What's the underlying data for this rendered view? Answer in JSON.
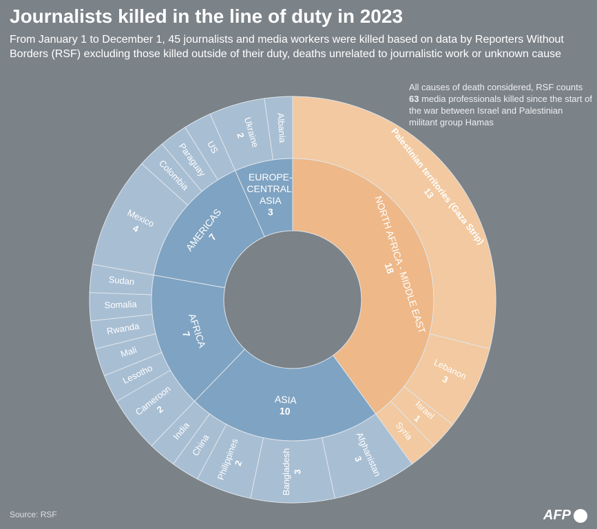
{
  "chart_data": {
    "type": "sunburst",
    "title": "Journalists killed in the line of duty in 2023",
    "subtitle": "From January 1 to December 1, 45 journalists and media workers were killed based on data by Reporters Without Borders (RSF) excluding those killed outside of their duty, deaths unrelated to journalistic work or unknown cause",
    "annotation": {
      "before": "All causes of death considered, RSF counts ",
      "highlight": "63",
      "after": " media professionals killed since the start of the war between Israel and Palestinian militant group Hamas"
    },
    "source": "Source: RSF",
    "logo": "AFP",
    "groups": [
      {
        "name": "NORTH AFRICA - MIDDLE EAST",
        "value": 18,
        "color": "#eeb888",
        "child_color": "#f2c9a0",
        "children": [
          {
            "name": "Palestinian territories (Gaza Strip)",
            "value": 13,
            "show_value": true
          },
          {
            "name": "Lebanon",
            "value": 3,
            "show_value": true
          },
          {
            "name": "Israel",
            "value": 1,
            "show_value": true
          },
          {
            "name": "Syria",
            "value": 1,
            "show_value": false
          }
        ]
      },
      {
        "name": "ASIA",
        "value": 10,
        "color": "#7fa3c2",
        "child_color": "#a8bed3",
        "children": [
          {
            "name": "Afghanistan",
            "value": 3,
            "show_value": true
          },
          {
            "name": "Bangladesh",
            "value": 3,
            "show_value": true
          },
          {
            "name": "Philippines",
            "value": 2,
            "show_value": true
          },
          {
            "name": "China",
            "value": 1,
            "show_value": false
          },
          {
            "name": "India",
            "value": 1,
            "show_value": false
          }
        ]
      },
      {
        "name": "AFRICA",
        "value": 7,
        "color": "#7fa3c2",
        "child_color": "#a8bed3",
        "children": [
          {
            "name": "Cameroon",
            "value": 2,
            "show_value": true
          },
          {
            "name": "Lesotho",
            "value": 1,
            "show_value": false
          },
          {
            "name": "Mali",
            "value": 1,
            "show_value": false
          },
          {
            "name": "Rwanda",
            "value": 1,
            "show_value": false
          },
          {
            "name": "Somalia",
            "value": 1,
            "show_value": false
          },
          {
            "name": "Sudan",
            "value": 1,
            "show_value": false
          }
        ]
      },
      {
        "name": "AMERICAS",
        "value": 7,
        "color": "#7fa3c2",
        "child_color": "#a8bed3",
        "children": [
          {
            "name": "Mexico",
            "value": 4,
            "show_value": true
          },
          {
            "name": "Colombia",
            "value": 1,
            "show_value": false
          },
          {
            "name": "Paraguay",
            "value": 1,
            "show_value": false
          },
          {
            "name": "US",
            "value": 1,
            "show_value": false
          }
        ]
      },
      {
        "name": "EUROPE-CENTRAL ASIA",
        "value": 3,
        "color": "#7fa3c2",
        "child_color": "#a8bed3",
        "children": [
          {
            "name": "Ukraine",
            "value": 2,
            "show_value": true
          },
          {
            "name": "Albania",
            "value": 1,
            "show_value": false
          }
        ]
      }
    ]
  }
}
